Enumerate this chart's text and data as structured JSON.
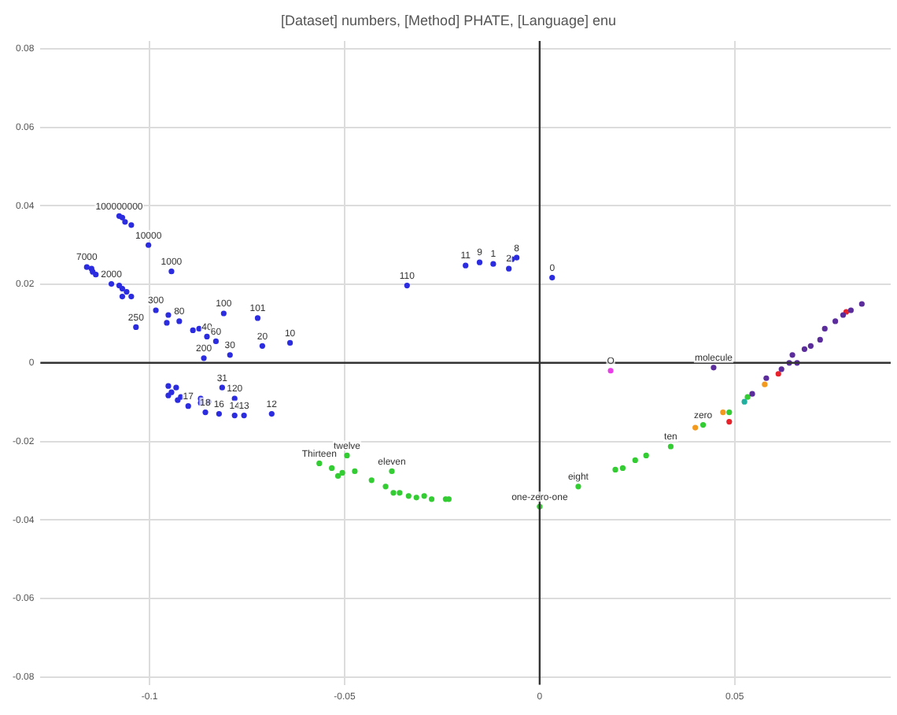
{
  "chart_data": {
    "type": "scatter",
    "title": "[Dataset] numbers, [Method] PHATE, [Language] enu",
    "x": [
      -0.1078,
      -0.107,
      -0.1063,
      -0.1047,
      -0.1003,
      -0.0944,
      -0.1161,
      -0.1149,
      -0.1138,
      -0.1146,
      -0.1098,
      -0.1078,
      -0.107,
      -0.1059,
      -0.107,
      -0.1047,
      -0.0984,
      -0.0952,
      -0.0956,
      -0.0924,
      -0.1035,
      -0.0889,
      -0.0873,
      -0.0853,
      -0.083,
      -0.0861,
      -0.0794,
      -0.081,
      -0.0723,
      -0.0711,
      -0.064,
      -0.0952,
      -0.0944,
      -0.0952,
      -0.0932,
      -0.092,
      -0.0928,
      -0.0901,
      -0.0814,
      -0.0869,
      -0.0849,
      -0.0869,
      -0.0857,
      -0.0822,
      -0.0782,
      -0.0782,
      -0.0758,
      -0.0687,
      -0.034,
      -0.019,
      -0.0154,
      -0.0119,
      -0.0079,
      -0.0071,
      -0.0059,
      0.0032,
      -0.0494,
      -0.0565,
      -0.0533,
      -0.0517,
      -0.0506,
      -0.0474,
      -0.0431,
      -0.0379,
      -0.0395,
      -0.0375,
      -0.0359,
      -0.0336,
      -0.0316,
      -0.0296,
      -0.0277,
      -0.0241,
      -0.0233,
      0.0,
      0.0099,
      0.0194,
      0.0213,
      0.0245,
      0.0273,
      0.0336,
      0.0419,
      0.0486,
      0.0533,
      0.0399,
      0.047,
      0.0577,
      0.0486,
      0.0612,
      0.0786,
      0.0525,
      0.0545,
      0.0581,
      0.062,
      0.066,
      0.0679,
      0.0446,
      0.064,
      0.0648,
      0.0695,
      0.0719,
      0.0731,
      0.0758,
      0.0778,
      0.0798,
      0.0826,
      0.0182
    ],
    "values": [
      0.0374,
      0.037,
      0.0359,
      0.0351,
      0.03,
      0.0233,
      0.0244,
      0.024,
      0.0225,
      0.0232,
      0.0201,
      0.0197,
      0.0189,
      0.0181,
      0.0169,
      0.0169,
      0.0134,
      0.0122,
      0.0102,
      0.0106,
      0.0091,
      0.0083,
      0.0087,
      0.0067,
      0.0055,
      0.0012,
      0.002,
      0.0126,
      0.0114,
      0.0043,
      0.0051,
      -0.0059,
      -0.0075,
      -0.0083,
      -0.0063,
      -0.0087,
      -0.0095,
      -0.011,
      -0.0063,
      -0.0091,
      -0.0099,
      -0.0102,
      -0.0126,
      -0.013,
      -0.0091,
      -0.0134,
      -0.0134,
      -0.013,
      0.0197,
      0.0248,
      0.0256,
      0.0252,
      0.024,
      0.0264,
      0.0268,
      0.0217,
      -0.0236,
      -0.0256,
      -0.0268,
      -0.0288,
      -0.028,
      -0.0276,
      -0.0299,
      -0.0276,
      -0.0315,
      -0.0331,
      -0.0331,
      -0.0339,
      -0.0343,
      -0.0339,
      -0.0347,
      -0.0347,
      -0.0347,
      -0.0366,
      -0.0315,
      -0.0272,
      -0.0268,
      -0.0248,
      -0.0236,
      -0.0213,
      -0.0158,
      -0.0126,
      -0.0087,
      -0.0165,
      -0.0126,
      -0.0055,
      -0.015,
      -0.0028,
      0.013,
      -0.0099,
      -0.0079,
      -0.0039,
      -0.0016,
      0.0,
      0.0035,
      -0.0012,
      0.0,
      0.002,
      0.0043,
      0.0059,
      0.0087,
      0.0106,
      0.0122,
      0.0134,
      0.015,
      -0.002
    ],
    "colors": [
      "#2b2bdf",
      "#2b2bdf",
      "#2b2bdf",
      "#2b2bdf",
      "#2b2bdf",
      "#2b2bdf",
      "#2b2bdf",
      "#2b2bdf",
      "#2b2bdf",
      "#2b2bdf",
      "#2b2bdf",
      "#2b2bdf",
      "#2b2bdf",
      "#2b2bdf",
      "#2b2bdf",
      "#2b2bdf",
      "#2b2bdf",
      "#2b2bdf",
      "#2b2bdf",
      "#2b2bdf",
      "#2b2bdf",
      "#2b2bdf",
      "#2b2bdf",
      "#2b2bdf",
      "#2b2bdf",
      "#2b2bdf",
      "#2b2bdf",
      "#2b2bdf",
      "#2b2bdf",
      "#2b2bdf",
      "#2b2bdf",
      "#2b2bdf",
      "#2b2bdf",
      "#2b2bdf",
      "#2b2bdf",
      "#2b2bdf",
      "#2b2bdf",
      "#2b2bdf",
      "#2b2bdf",
      "#2b2bdf",
      "#2b2bdf",
      "#2b2bdf",
      "#2b2bdf",
      "#2b2bdf",
      "#2b2bdf",
      "#2b2bdf",
      "#2b2bdf",
      "#2b2bdf",
      "#2b2bdf",
      "#2b2bdf",
      "#2b2bdf",
      "#2b2bdf",
      "#2b2bdf",
      "#2b2bdf",
      "#2b2bdf",
      "#2b2bdf",
      "#33cc33",
      "#33cc33",
      "#33cc33",
      "#33cc33",
      "#33cc33",
      "#33cc33",
      "#33cc33",
      "#33cc33",
      "#33cc33",
      "#33cc33",
      "#33cc33",
      "#33cc33",
      "#33cc33",
      "#33cc33",
      "#33cc33",
      "#33cc33",
      "#33cc33",
      "#33cc33",
      "#33cc33",
      "#33cc33",
      "#33cc33",
      "#33cc33",
      "#33cc33",
      "#33cc33",
      "#33cc33",
      "#33cc33",
      "#33cc33",
      "#f39a1e",
      "#f39a1e",
      "#f39a1e",
      "#e8222a",
      "#e8222a",
      "#e8222a",
      "#20b0a0",
      "#5b2c9b",
      "#5b2c9b",
      "#5b2c9b",
      "#5b2c9b",
      "#5b2c9b",
      "#5b2c9b",
      "#5b2c9b",
      "#5b2c9b",
      "#5b2c9b",
      "#5b2c9b",
      "#5b2c9b",
      "#5b2c9b",
      "#5b2c9b",
      "#5b2c9b",
      "#5b2c9b",
      "#e83ee8"
    ],
    "xlim": [
      -0.128,
      0.09
    ],
    "ylim": [
      -0.082,
      0.082
    ],
    "xticks": [
      -0.1,
      -0.05,
      0,
      0.05
    ],
    "yticks": [
      -0.08,
      -0.06,
      -0.04,
      -0.02,
      0,
      0.02,
      0.04,
      0.06,
      0.08
    ],
    "grid": true,
    "legend": false,
    "marker": "circle",
    "annotations": [
      {
        "text": "100000000",
        "x": -0.1078,
        "y": 0.0374
      },
      {
        "text": "10000",
        "x": -0.1003,
        "y": 0.03
      },
      {
        "text": "1000",
        "x": -0.0944,
        "y": 0.0233
      },
      {
        "text": "7000",
        "x": -0.1161,
        "y": 0.0244
      },
      {
        "text": "2000",
        "x": -0.1098,
        "y": 0.0201
      },
      {
        "text": "300",
        "x": -0.0984,
        "y": 0.0134
      },
      {
        "text": "80",
        "x": -0.0924,
        "y": 0.0106
      },
      {
        "text": "250",
        "x": -0.1035,
        "y": 0.0091
      },
      {
        "text": "40",
        "x": -0.0853,
        "y": 0.0067
      },
      {
        "text": "60",
        "x": -0.083,
        "y": 0.0055
      },
      {
        "text": "200",
        "x": -0.0861,
        "y": 0.0012
      },
      {
        "text": "30",
        "x": -0.0794,
        "y": 0.002
      },
      {
        "text": "100",
        "x": -0.081,
        "y": 0.0126
      },
      {
        "text": "101",
        "x": -0.0723,
        "y": 0.0114
      },
      {
        "text": "20",
        "x": -0.0711,
        "y": 0.0043
      },
      {
        "text": "10",
        "x": -0.064,
        "y": 0.0051
      },
      {
        "text": "31",
        "x": -0.0814,
        "y": -0.0063
      },
      {
        "text": "17",
        "x": -0.0901,
        "y": -0.011
      },
      {
        "text": "18",
        "x": -0.0857,
        "y": -0.0126
      },
      {
        "text": "16",
        "x": -0.0822,
        "y": -0.013
      },
      {
        "text": "120",
        "x": -0.0782,
        "y": -0.0091
      },
      {
        "text": "14",
        "x": -0.0782,
        "y": -0.0134
      },
      {
        "text": "13",
        "x": -0.0758,
        "y": -0.0134
      },
      {
        "text": "12",
        "x": -0.0687,
        "y": -0.013
      },
      {
        "text": "110",
        "x": -0.034,
        "y": 0.0197
      },
      {
        "text": "11",
        "x": -0.019,
        "y": 0.0248
      },
      {
        "text": "9",
        "x": -0.0154,
        "y": 0.0256
      },
      {
        "text": "1",
        "x": -0.0119,
        "y": 0.0252
      },
      {
        "text": "2",
        "x": -0.0079,
        "y": 0.024
      },
      {
        "text": "8",
        "x": -0.0059,
        "y": 0.0268
      },
      {
        "text": "0",
        "x": 0.0032,
        "y": 0.0217
      },
      {
        "text": "twelve",
        "x": -0.0494,
        "y": -0.0236
      },
      {
        "text": "Thirteen",
        "x": -0.0565,
        "y": -0.0256
      },
      {
        "text": "eleven",
        "x": -0.0379,
        "y": -0.0276
      },
      {
        "text": "one-zero-one",
        "x": 0.0,
        "y": -0.0366
      },
      {
        "text": "eight",
        "x": 0.0099,
        "y": -0.0315
      },
      {
        "text": "ten",
        "x": 0.0336,
        "y": -0.0213
      },
      {
        "text": "zero",
        "x": 0.0419,
        "y": -0.0158
      },
      {
        "text": "molecule",
        "x": 0.0446,
        "y": -0.0012
      },
      {
        "text": "O",
        "x": 0.0182,
        "y": -0.002
      }
    ]
  }
}
